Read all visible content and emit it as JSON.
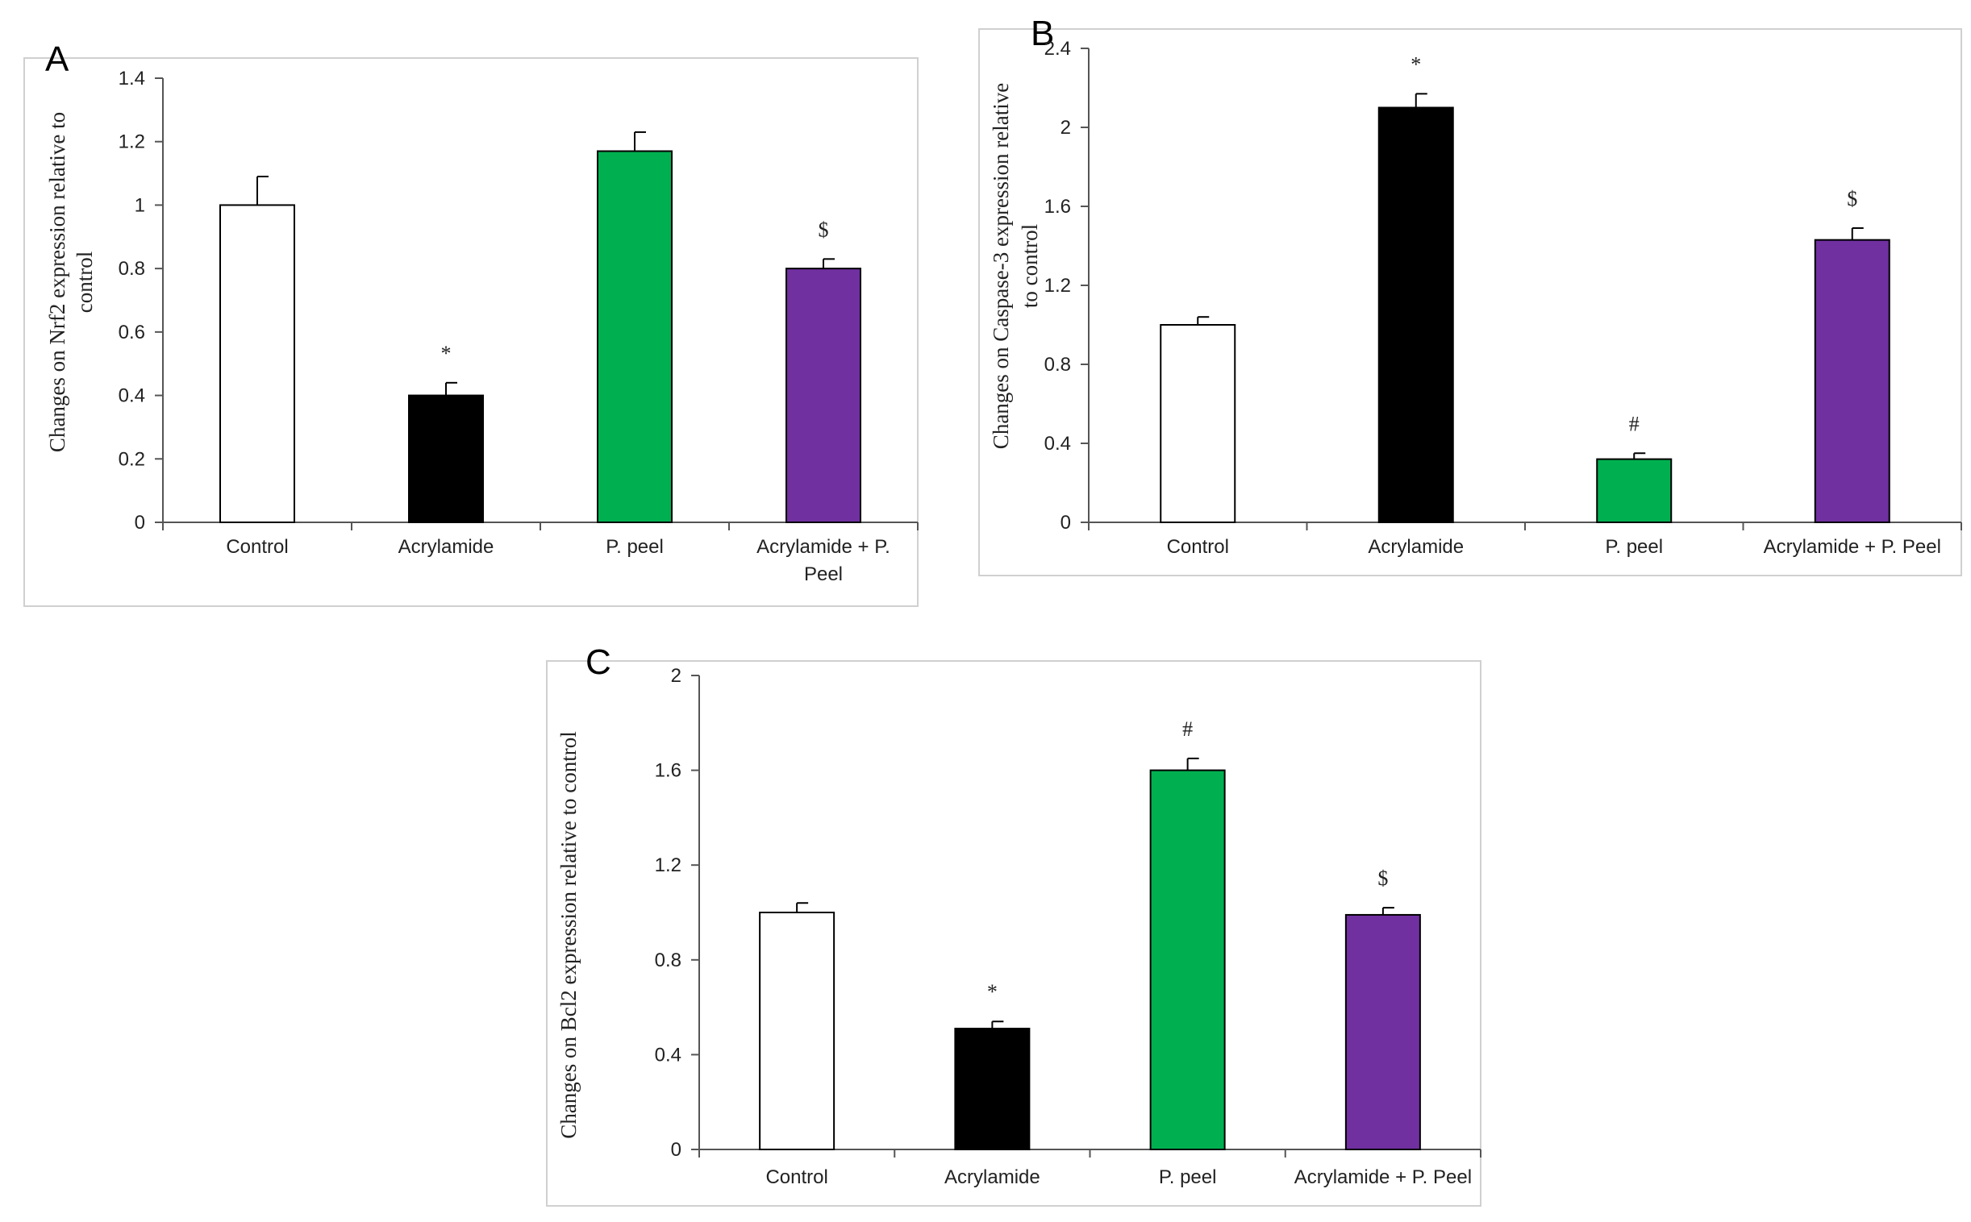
{
  "chart_data": [
    {
      "panel": "A",
      "type": "bar",
      "title": "",
      "ylabel": [
        "Changes on Nrf2 expression relative to",
        "control"
      ],
      "xlabel": "",
      "categories": [
        [
          "Control"
        ],
        [
          "Acrylamide"
        ],
        [
          "P. peel"
        ],
        [
          "Acrylamide + P.",
          "Peel"
        ]
      ],
      "values": [
        1.0,
        0.4,
        1.17,
        0.8
      ],
      "errors": [
        0.09,
        0.04,
        0.06,
        0.03
      ],
      "markers": [
        "",
        "*",
        "",
        "$"
      ],
      "colors": [
        "#ffffff",
        "#000000",
        "#00b050",
        "#7030a0"
      ],
      "ylim": [
        0,
        1.4
      ],
      "yticks": [
        0,
        0.2,
        0.4,
        0.6,
        0.8,
        1,
        1.2,
        1.4
      ],
      "ytick_labels": [
        "0",
        "0.2",
        "0.4",
        "0.6",
        "0.8",
        "1",
        "1.2",
        "1.4"
      ],
      "grid": false
    },
    {
      "panel": "B",
      "type": "bar",
      "title": "",
      "ylabel": [
        "Changes on Caspase-3 expression relative",
        "to control"
      ],
      "xlabel": "",
      "categories": [
        [
          "Control"
        ],
        [
          "Acrylamide"
        ],
        [
          "P. peel"
        ],
        [
          "Acrylamide + P. Peel"
        ]
      ],
      "values": [
        1.0,
        2.1,
        0.32,
        1.43
      ],
      "errors": [
        0.04,
        0.07,
        0.03,
        0.06
      ],
      "markers": [
        "",
        "*",
        "#",
        "$"
      ],
      "colors": [
        "#ffffff",
        "#000000",
        "#00b050",
        "#7030a0"
      ],
      "ylim": [
        0,
        2.4
      ],
      "yticks": [
        0,
        0.4,
        0.8,
        1.2,
        1.6,
        2,
        2.4
      ],
      "ytick_labels": [
        "0",
        "0.4",
        "0.8",
        "1.2",
        "1.6",
        "2",
        "2.4"
      ],
      "grid": false
    },
    {
      "panel": "C",
      "type": "bar",
      "title": "",
      "ylabel": [
        "Changes on Bcl2 expression relative to control"
      ],
      "xlabel": "",
      "categories": [
        [
          "Control"
        ],
        [
          "Acrylamide"
        ],
        [
          "P. peel"
        ],
        [
          "Acrylamide + P. Peel"
        ]
      ],
      "values": [
        1.0,
        0.51,
        1.6,
        0.99
      ],
      "errors": [
        0.04,
        0.03,
        0.05,
        0.03
      ],
      "markers": [
        "",
        "*",
        "#",
        "$"
      ],
      "colors": [
        "#ffffff",
        "#000000",
        "#00b050",
        "#7030a0"
      ],
      "ylim": [
        0,
        2
      ],
      "yticks": [
        0,
        0.4,
        0.8,
        1.2,
        1.6,
        2
      ],
      "ytick_labels": [
        "0",
        "0.4",
        "0.8",
        "1.2",
        "1.6",
        "2"
      ],
      "grid": false
    }
  ]
}
